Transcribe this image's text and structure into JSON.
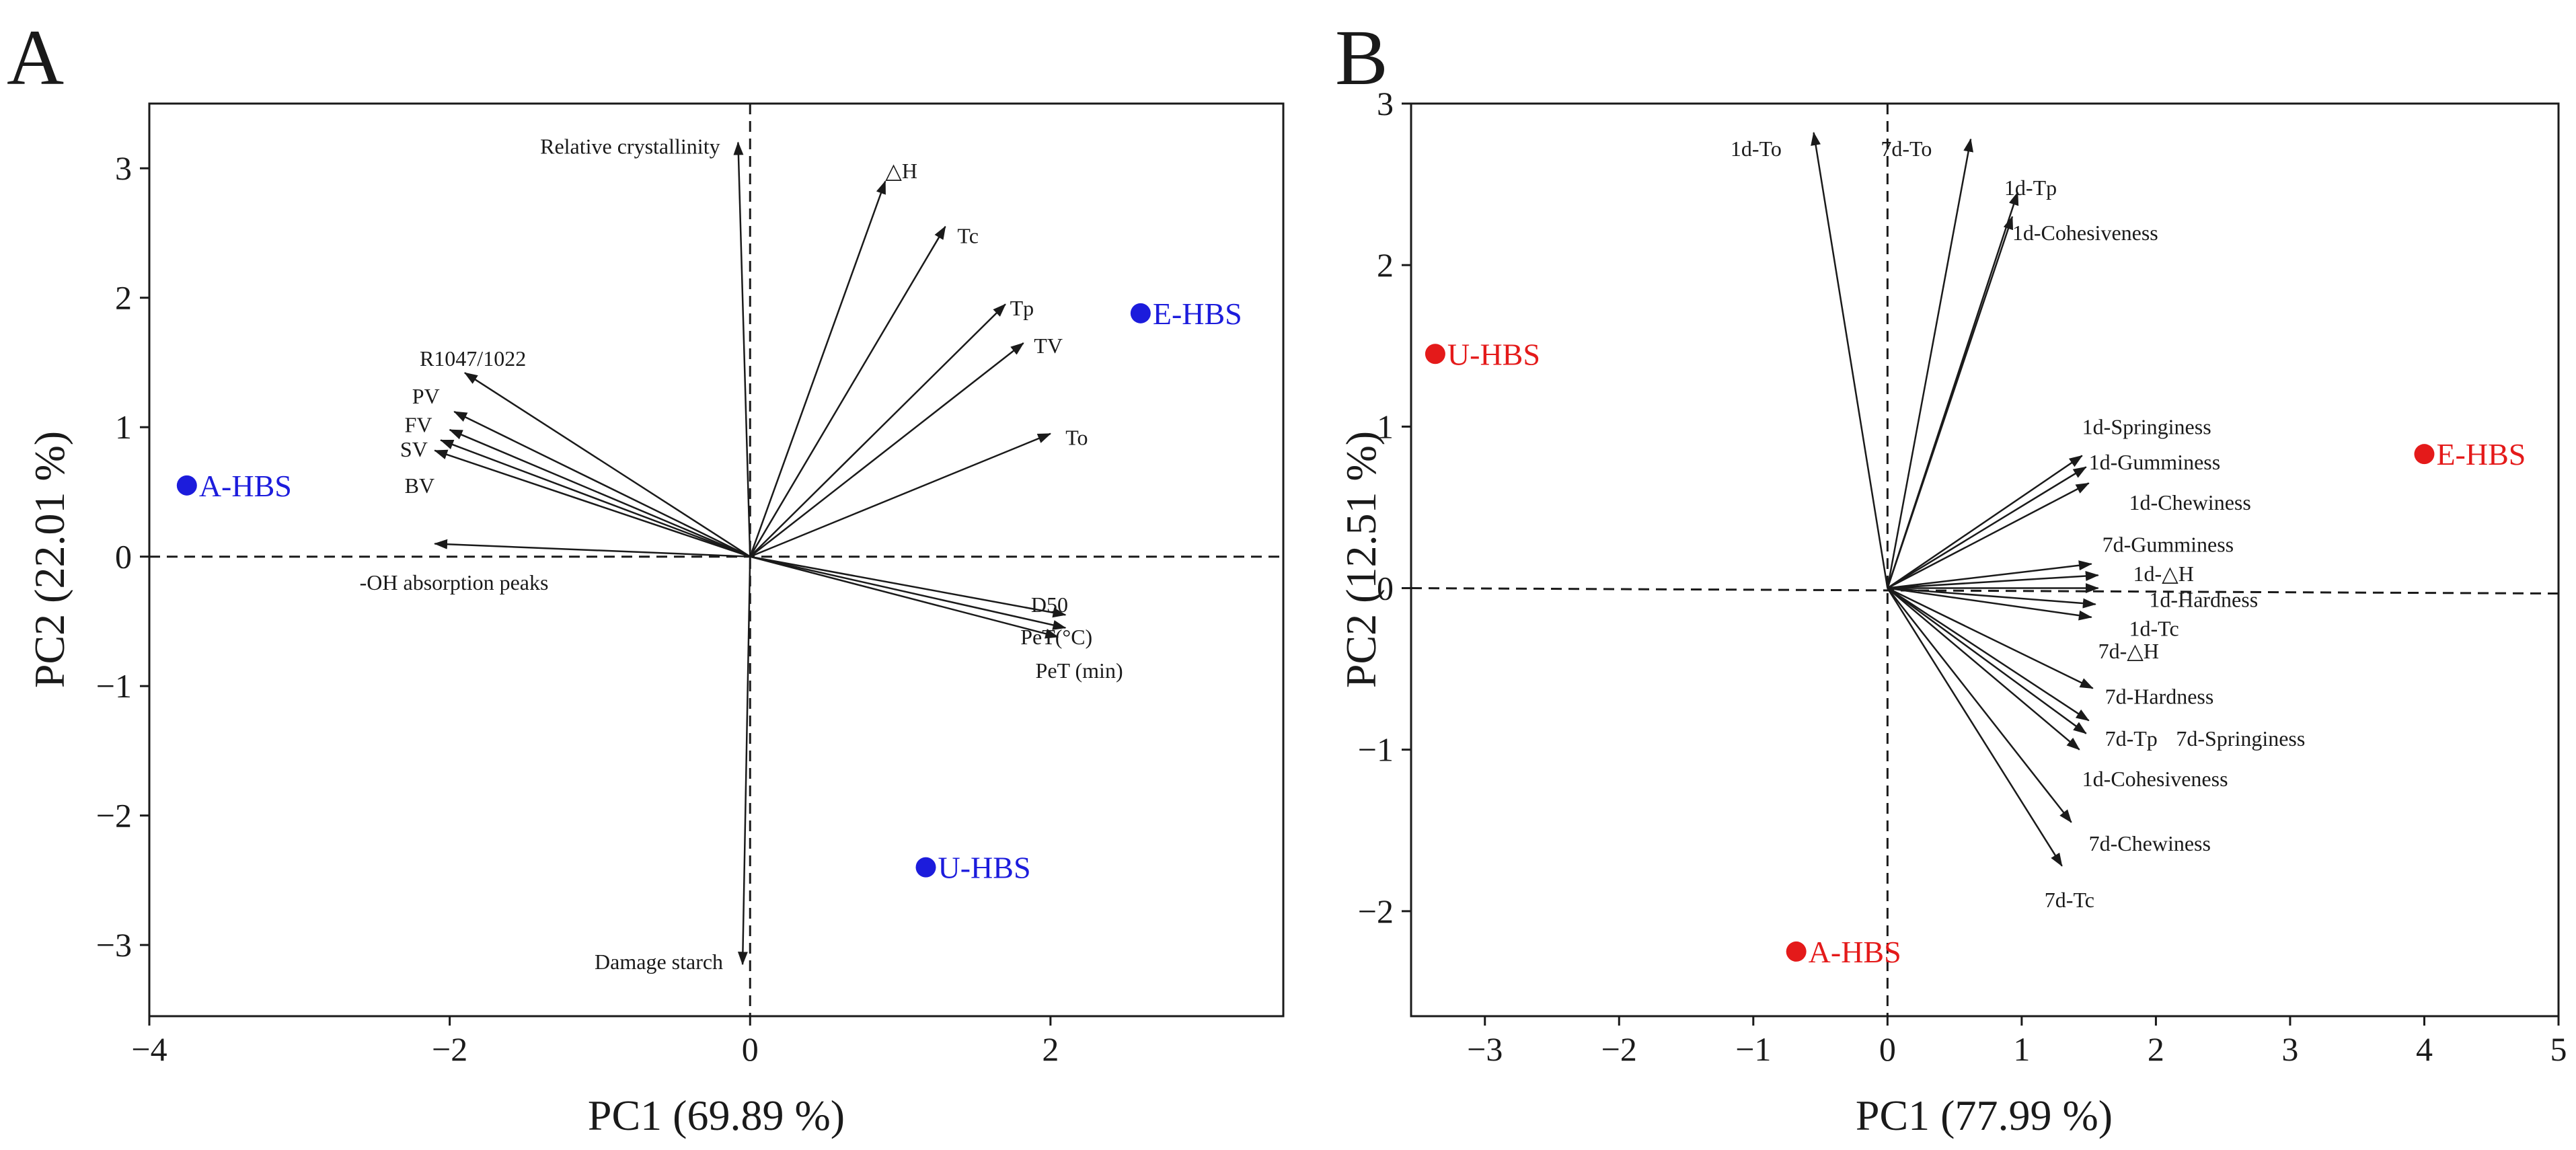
{
  "chart_data": [
    {
      "type": "scatter",
      "panel_label": "A",
      "xlabel": "PC1 (69.89 %)",
      "ylabel": "PC2 (22.01 %)",
      "xlim": [
        -4.0,
        3.55
      ],
      "ylim": [
        -3.55,
        3.5
      ],
      "xticks": [
        "-4",
        "-2",
        "0",
        "2"
      ],
      "yticks": [
        "-3",
        "-2",
        "-1",
        "0",
        "1",
        "2",
        "3"
      ],
      "x_tick_values": [
        -4,
        -2,
        0,
        2
      ],
      "y_tick_values": [
        -3,
        -2,
        -1,
        0,
        1,
        2,
        3
      ],
      "vector_color": "#1a1a1a",
      "point_color": "#1c1cdc",
      "loadings": [
        {
          "label": "Relative crystallinity",
          "x": -0.08,
          "y": 3.2,
          "lx": -0.2,
          "ly": 3.17,
          "anchor": "end"
        },
        {
          "label": "△H",
          "x": 0.9,
          "y": 2.9,
          "lx": 0.9,
          "ly": 2.98,
          "anchor": "start"
        },
        {
          "label": "Tc",
          "x": 1.3,
          "y": 2.55,
          "lx": 1.38,
          "ly": 2.48,
          "anchor": "start"
        },
        {
          "label": "Tp",
          "x": 1.7,
          "y": 1.95,
          "lx": 1.73,
          "ly": 1.92,
          "anchor": "start"
        },
        {
          "label": "TV",
          "x": 1.82,
          "y": 1.65,
          "lx": 1.89,
          "ly": 1.63,
          "anchor": "start"
        },
        {
          "label": "To",
          "x": 2.0,
          "y": 0.95,
          "lx": 2.1,
          "ly": 0.92,
          "anchor": "start"
        },
        {
          "label": "R1047/1022",
          "x": -1.9,
          "y": 1.42,
          "lx": -2.2,
          "ly": 1.53,
          "anchor": "start"
        },
        {
          "label": "PV",
          "x": -1.97,
          "y": 1.12,
          "lx": -2.25,
          "ly": 1.24,
          "anchor": "start"
        },
        {
          "label": "FV",
          "x": -2.0,
          "y": 0.98,
          "lx": -2.3,
          "ly": 1.02,
          "anchor": "start"
        },
        {
          "label": "SV",
          "x": -2.06,
          "y": 0.9,
          "lx": -2.33,
          "ly": 0.83,
          "anchor": "start"
        },
        {
          "label": "BV",
          "x": -2.1,
          "y": 0.82,
          "lx": -2.3,
          "ly": 0.55,
          "anchor": "start"
        },
        {
          "label": "-OH absorption peaks",
          "x": -2.1,
          "y": 0.1,
          "lx": -2.6,
          "ly": -0.2,
          "anchor": "start"
        },
        {
          "label": "D50",
          "x": 2.1,
          "y": -0.45,
          "lx": 1.87,
          "ly": -0.37,
          "anchor": "start"
        },
        {
          "label": "PeT(°C)",
          "x": 2.1,
          "y": -0.55,
          "lx": 1.8,
          "ly": -0.62,
          "anchor": "start"
        },
        {
          "label": "PeT (min)",
          "x": 2.05,
          "y": -0.62,
          "lx": 1.9,
          "ly": -0.88,
          "anchor": "start"
        },
        {
          "label": "Damage starch",
          "x": -0.05,
          "y": -3.15,
          "lx": -0.18,
          "ly": -3.13,
          "anchor": "end"
        }
      ],
      "samples": [
        {
          "label": "E-HBS",
          "x": 2.6,
          "y": 1.88
        },
        {
          "label": "A-HBS",
          "x": -3.75,
          "y": 0.55
        },
        {
          "label": "U-HBS",
          "x": 1.17,
          "y": -2.4
        }
      ]
    },
    {
      "type": "scatter",
      "panel_label": "B",
      "xlabel": "PC1 (77.99 %)",
      "ylabel": "PC2 (12.51 %)",
      "xlim": [
        -3.55,
        5.0
      ],
      "ylim": [
        -2.65,
        3.0
      ],
      "xticks": [
        "-3",
        "-2",
        "-1",
        "0",
        "1",
        "2",
        "3",
        "4",
        "5"
      ],
      "yticks": [
        "-2",
        "-1",
        "0",
        "1",
        "2",
        "3"
      ],
      "x_tick_values": [
        -3,
        -2,
        -1,
        0,
        1,
        2,
        3,
        4,
        5
      ],
      "y_tick_values": [
        -2,
        -1,
        0,
        1,
        2,
        3
      ],
      "vector_color": "#1a1a1a",
      "point_color": "#e41a1a",
      "loadings": [
        {
          "label": "1d-To",
          "x": -0.55,
          "y": 2.82,
          "lx": -1.17,
          "ly": 2.72,
          "anchor": "start"
        },
        {
          "label": "7d-To",
          "x": 0.62,
          "y": 2.78,
          "lx": -0.05,
          "ly": 2.72,
          "anchor": "start"
        },
        {
          "label": "1d-Tp",
          "x": 0.97,
          "y": 2.45,
          "lx": 0.87,
          "ly": 2.48,
          "anchor": "start"
        },
        {
          "label": "1d-Cohesiveness",
          "x": 0.93,
          "y": 2.3,
          "lx": 0.93,
          "ly": 2.2,
          "anchor": "start"
        },
        {
          "label": "1d-Springiness",
          "x": 1.45,
          "y": 0.82,
          "lx": 1.45,
          "ly": 1.0,
          "anchor": "start"
        },
        {
          "label": "1d-Gumminess",
          "x": 1.48,
          "y": 0.75,
          "lx": 1.5,
          "ly": 0.78,
          "anchor": "start"
        },
        {
          "label": "1d-Chewiness",
          "x": 1.5,
          "y": 0.65,
          "lx": 1.8,
          "ly": 0.53,
          "anchor": "start"
        },
        {
          "label": "7d-Gumminess",
          "x": 1.52,
          "y": 0.15,
          "lx": 1.6,
          "ly": 0.27,
          "anchor": "start"
        },
        {
          "label": "1d-△H",
          "x": 1.57,
          "y": 0.08,
          "lx": 1.83,
          "ly": 0.09,
          "anchor": "start"
        },
        {
          "label": "1d-Hardness",
          "x": 1.57,
          "y": 0.0,
          "lx": 1.95,
          "ly": -0.07,
          "anchor": "start"
        },
        {
          "label": "1d-Tc",
          "x": 1.55,
          "y": -0.1,
          "lx": 1.8,
          "ly": -0.25,
          "anchor": "start"
        },
        {
          "label": "7d-△H",
          "x": 1.52,
          "y": -0.18,
          "lx": 1.57,
          "ly": -0.39,
          "anchor": "start"
        },
        {
          "label": "7d-Hardness",
          "x": 1.53,
          "y": -0.62,
          "lx": 1.62,
          "ly": -0.67,
          "anchor": "start"
        },
        {
          "label": "7d-Tp",
          "x": 1.5,
          "y": -0.82,
          "lx": 1.62,
          "ly": -0.93,
          "anchor": "start"
        },
        {
          "label": "7d-Springiness",
          "x": 1.48,
          "y": -0.9,
          "lx": 2.15,
          "ly": -0.93,
          "anchor": "start"
        },
        {
          "label": "1d-Cohesiveness",
          "x": 1.43,
          "y": -1.0,
          "lx": 1.45,
          "ly": -1.18,
          "anchor": "start"
        },
        {
          "label": "7d-Chewiness",
          "x": 1.37,
          "y": -1.45,
          "lx": 1.5,
          "ly": -1.58,
          "anchor": "start"
        },
        {
          "label": "7d-Tc",
          "x": 1.3,
          "y": -1.72,
          "lx": 1.17,
          "ly": -1.93,
          "anchor": "start"
        }
      ],
      "samples": [
        {
          "label": "U-HBS",
          "x": -3.37,
          "y": 1.45
        },
        {
          "label": "E-HBS",
          "x": 4.0,
          "y": 0.83
        },
        {
          "label": "A-HBS",
          "x": -0.68,
          "y": -2.25
        }
      ]
    }
  ]
}
